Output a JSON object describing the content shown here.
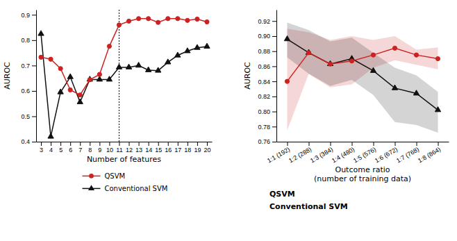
{
  "chart_data": [
    {
      "type": "line",
      "x": [
        3,
        4,
        5,
        6,
        7,
        8,
        9,
        10,
        11,
        12,
        13,
        14,
        15,
        16,
        17,
        18,
        19,
        20
      ],
      "xlim": [
        2.5,
        20.5
      ],
      "xticks": [
        3,
        4,
        5,
        6,
        7,
        8,
        9,
        10,
        11,
        12,
        13,
        14,
        15,
        16,
        17,
        18,
        19,
        20
      ],
      "ylim": [
        0.4,
        0.92
      ],
      "yticks": [
        0.4,
        0.5,
        0.6,
        0.7,
        0.8,
        0.9
      ],
      "x_label": "Number of features",
      "y_label": "AUROC",
      "vline_x": 11,
      "grid": false,
      "legend": "bottom",
      "series": [
        {
          "name": "QSVM",
          "color": "#cc2222",
          "marker": "circle",
          "values": [
            0.733,
            0.725,
            0.688,
            0.604,
            0.584,
            0.644,
            0.665,
            0.776,
            0.86,
            0.875,
            0.885,
            0.885,
            0.87,
            0.885,
            0.885,
            0.878,
            0.883,
            0.872
          ]
        },
        {
          "name": "Conventional SVM",
          "color": "#111111",
          "marker": "triangle",
          "values": [
            0.825,
            0.42,
            0.595,
            0.655,
            0.556,
            0.645,
            0.645,
            0.645,
            0.693,
            0.693,
            0.7,
            0.682,
            0.68,
            0.713,
            0.74,
            0.757,
            0.77,
            0.775
          ]
        }
      ]
    },
    {
      "type": "line",
      "categories": [
        "1:1 (192)",
        "1:2 (288)",
        "1:3 (384)",
        "1:4 (480)",
        "1:5 (576)",
        "1:6 (672)",
        "1:7 (768)",
        "1:8 (864)"
      ],
      "ylim": [
        0.76,
        0.935
      ],
      "yticks": [
        0.76,
        0.78,
        {
          "value": 0.8,
          "label": "0.80"
        },
        0.82,
        0.84,
        0.86,
        0.88,
        {
          "value": 0.9,
          "label": "0.90"
        },
        0.92
      ],
      "x_label": "Outcome ratio\n(number of training data)",
      "y_label": "AUROC",
      "grid": false,
      "annotations": [
        "QSVM",
        "Conventional SVM"
      ],
      "series": [
        {
          "color": "#cc2222",
          "marker": "circle",
          "values": [
            0.84,
            0.878,
            0.863,
            0.867,
            0.875,
            0.884,
            0.875,
            0.87
          ],
          "lower": [
            0.775,
            0.85,
            0.832,
            0.836,
            0.858,
            0.868,
            0.862,
            0.856
          ],
          "upper": [
            0.91,
            0.905,
            0.895,
            0.9,
            0.895,
            0.9,
            0.882,
            0.885
          ]
        },
        {
          "color": "#111111",
          "marker": "triangle",
          "values": [
            0.896,
            0.878,
            0.863,
            0.87,
            0.854,
            0.831,
            0.824,
            0.802
          ],
          "lower": [
            0.872,
            0.85,
            0.834,
            0.842,
            0.822,
            0.786,
            0.782,
            0.772
          ],
          "upper": [
            0.918,
            0.908,
            0.893,
            0.898,
            0.878,
            0.858,
            0.848,
            0.826
          ]
        }
      ]
    }
  ]
}
